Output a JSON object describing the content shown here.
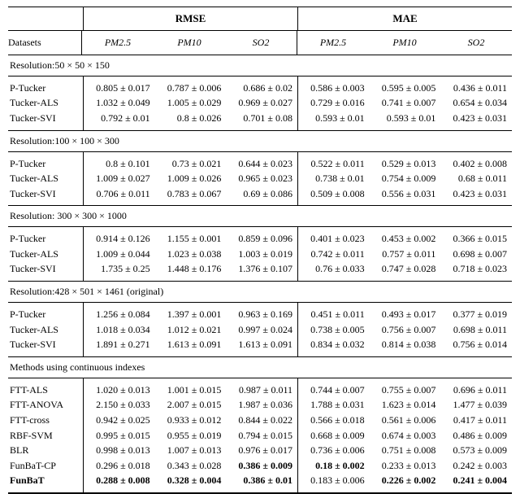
{
  "metrics": [
    "RMSE",
    "MAE"
  ],
  "datasets_label": "Datasets",
  "subcols": [
    "PM2.5",
    "PM10",
    "SO2"
  ],
  "sections": [
    {
      "title": "Resolution:50 × 50 × 150",
      "rows": [
        {
          "label": "P-Tucker",
          "vals": [
            "0.805 ± 0.017",
            "0.787 ± 0.006",
            "0.686 ± 0.02",
            "0.586 ± 0.003",
            "0.595 ± 0.005",
            "0.436 ± 0.011"
          ]
        },
        {
          "label": "Tucker-ALS",
          "vals": [
            "1.032 ± 0.049",
            "1.005 ± 0.029",
            "0.969 ± 0.027",
            "0.729 ± 0.016",
            "0.741 ± 0.007",
            "0.654 ± 0.034"
          ]
        },
        {
          "label": "Tucker-SVI",
          "vals": [
            "0.792 ± 0.01",
            "0.8 ± 0.026",
            "0.701 ± 0.08",
            "0.593 ± 0.01",
            "0.593 ± 0.01",
            "0.423 ± 0.031"
          ]
        }
      ]
    },
    {
      "title": "Resolution:100 × 100 × 300",
      "rows": [
        {
          "label": "P-Tucker",
          "vals": [
            "0.8 ± 0.101",
            "0.73 ± 0.021",
            "0.644 ± 0.023",
            "0.522 ± 0.011",
            "0.529 ± 0.013",
            "0.402 ± 0.008"
          ]
        },
        {
          "label": "Tucker-ALS",
          "vals": [
            "1.009 ± 0.027",
            "1.009 ± 0.026",
            "0.965 ± 0.023",
            "0.738 ± 0.01",
            "0.754 ± 0.009",
            "0.68 ± 0.011"
          ]
        },
        {
          "label": "Tucker-SVI",
          "vals": [
            "0.706 ± 0.011",
            "0.783 ± 0.067",
            "0.69 ± 0.086",
            "0.509 ± 0.008",
            "0.556 ± 0.031",
            "0.423 ± 0.031"
          ]
        }
      ]
    },
    {
      "title": "Resolution: 300 × 300 × 1000",
      "rows": [
        {
          "label": "P-Tucker",
          "vals": [
            "0.914 ± 0.126",
            "1.155 ± 0.001",
            "0.859 ± 0.096",
            "0.401 ± 0.023",
            "0.453 ± 0.002",
            "0.366 ± 0.015"
          ]
        },
        {
          "label": "Tucker-ALS",
          "vals": [
            "1.009 ± 0.044",
            "1.023 ± 0.038",
            "1.003 ± 0.019",
            "0.742 ± 0.011",
            "0.757 ± 0.011",
            "0.698 ± 0.007"
          ]
        },
        {
          "label": "Tucker-SVI",
          "vals": [
            "1.735 ± 0.25",
            "1.448 ± 0.176",
            "1.376 ± 0.107",
            "0.76 ± 0.033",
            "0.747 ± 0.028",
            "0.718 ± 0.023"
          ]
        }
      ]
    },
    {
      "title": "Resolution:428 × 501 × 1461 (original)",
      "rows": [
        {
          "label": "P-Tucker",
          "vals": [
            "1.256 ± 0.084",
            "1.397 ± 0.001",
            "0.963 ± 0.169",
            "0.451 ± 0.011",
            "0.493 ± 0.017",
            "0.377 ± 0.019"
          ]
        },
        {
          "label": "Tucker-ALS",
          "vals": [
            "1.018 ± 0.034",
            "1.012 ± 0.021",
            "0.997 ± 0.024",
            "0.738 ± 0.005",
            "0.756 ± 0.007",
            "0.698 ± 0.011"
          ]
        },
        {
          "label": "Tucker-SVI",
          "vals": [
            "1.891 ± 0.271",
            "1.613 ± 0.091",
            "1.613 ± 0.091",
            "0.834 ± 0.032",
            "0.814 ± 0.038",
            "0.756 ± 0.014"
          ]
        }
      ]
    },
    {
      "title": "Methods using continuous indexes",
      "rows": [
        {
          "label": "FTT-ALS",
          "vals": [
            "1.020 ± 0.013",
            "1.001 ± 0.015",
            "0.987 ± 0.011",
            "0.744 ± 0.007",
            "0.755 ± 0.007",
            "0.696 ± 0.011"
          ]
        },
        {
          "label": "FTT-ANOVA",
          "vals": [
            "2.150 ± 0.033",
            "2.007 ± 0.015",
            "1.987 ± 0.036",
            "1.788 ± 0.031",
            "1.623 ± 0.014",
            "1.477 ± 0.039"
          ]
        },
        {
          "label": "FTT-cross",
          "vals": [
            "0.942 ± 0.025",
            "0.933 ± 0.012",
            "0.844 ± 0.022",
            "0.566 ± 0.018",
            "0.561 ± 0.006",
            "0.417 ± 0.011"
          ]
        },
        {
          "label": "RBF-SVM",
          "vals": [
            "0.995 ± 0.015",
            "0.955 ± 0.019",
            "0.794 ± 0.015",
            "0.668 ± 0.009",
            "0.674 ± 0.003",
            "0.486 ± 0.009"
          ]
        },
        {
          "label": "BLR",
          "vals": [
            "0.998 ± 0.013",
            "1.007 ± 0.013",
            "0.976 ± 0.017",
            "0.736 ± 0.006",
            "0.751 ± 0.008",
            "0.573 ± 0.009"
          ]
        },
        {
          "label": "FunBaT-CP",
          "vals": [
            "0.296 ± 0.018",
            "0.343 ± 0.028",
            "0.386 ± 0.009",
            "0.18 ± 0.002",
            "0.233 ± 0.013",
            "0.242 ± 0.003"
          ],
          "bold": [
            false,
            false,
            true,
            true,
            false,
            false
          ]
        },
        {
          "label": "FunBaT",
          "vals": [
            "0.288 ± 0.008",
            "0.328 ± 0.004",
            "0.386 ± 0.01",
            "0.183 ± 0.006",
            "0.226 ± 0.002",
            "0.241 ± 0.004"
          ],
          "bold": [
            true,
            true,
            true,
            false,
            true,
            true
          ],
          "bold_label": true
        }
      ]
    }
  ],
  "style": {
    "ncols": 6,
    "col_label_w": 90,
    "font_size": 12,
    "border_color": "#000000",
    "bg": "#ffffff"
  }
}
